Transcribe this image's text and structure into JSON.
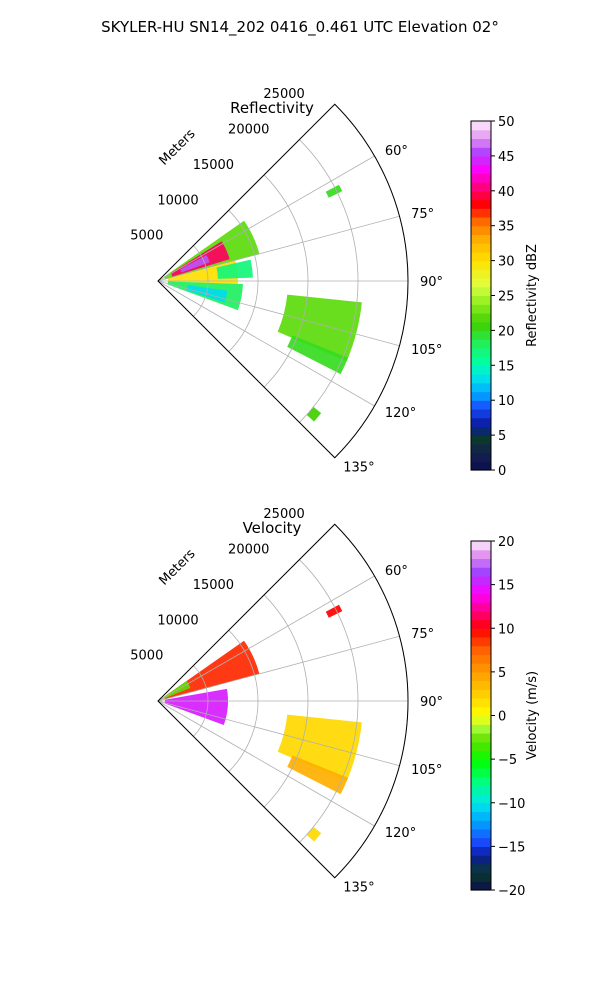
{
  "figure": {
    "title": "SKYLER-HU  SN14_202  0416_0.461 UTC Elevation 02°"
  },
  "chart_data": [
    {
      "type": "polar-sector",
      "title": "Reflectivity",
      "radial_label": "Meters",
      "radial_ticks": [
        5000,
        10000,
        15000,
        20000,
        25000
      ],
      "radial_tick_labels": [
        "5000",
        "10000",
        "15000",
        "20000",
        "25000"
      ],
      "r_max": 25000,
      "theta_range_deg": [
        45,
        135
      ],
      "theta_ticks": [
        60,
        75,
        90,
        105,
        120,
        135
      ],
      "theta_tick_labels": [
        "60°",
        "75°",
        "90°",
        "105°",
        "120°",
        "135°"
      ],
      "grid": true,
      "colorbar": {
        "label": "Reflectivity dBZ",
        "range": [
          0,
          50
        ],
        "ticks": [
          0,
          5,
          10,
          15,
          20,
          25,
          30,
          35,
          40,
          45,
          50
        ],
        "tick_labels": [
          "0",
          "5",
          "10",
          "15",
          "20",
          "25",
          "30",
          "35",
          "40",
          "45",
          "50"
        ]
      },
      "echoes": [
        {
          "az": [
            55,
            75
          ],
          "r": [
            700,
            10500
          ],
          "value": 22
        },
        {
          "az": [
            58,
            73
          ],
          "r": [
            1500,
            7500
          ],
          "value": 40
        },
        {
          "az": [
            62,
            70
          ],
          "r": [
            2500,
            5500
          ],
          "value": 46
        },
        {
          "az": [
            75,
            92
          ],
          "r": [
            1000,
            8000
          ],
          "value": 30
        },
        {
          "az": [
            77,
            88
          ],
          "r": [
            6000,
            9500
          ],
          "value": 17
        },
        {
          "az": [
            92,
            110
          ],
          "r": [
            1000,
            8500
          ],
          "value": 18
        },
        {
          "az": [
            98,
            108
          ],
          "r": [
            3000,
            7000
          ],
          "value": 13
        },
        {
          "az": [
            96,
            113
          ],
          "r": [
            13000,
            20500
          ],
          "value": 22
        },
        {
          "az": [
            112,
            117
          ],
          "r": [
            14500,
            20500
          ],
          "value": 20
        },
        {
          "az": [
            62,
            64
          ],
          "r": [
            19000,
            20500
          ],
          "value": 20
        },
        {
          "az": [
            129,
            132
          ],
          "r": [
            20000,
            21000
          ],
          "value": 21
        }
      ]
    },
    {
      "type": "polar-sector",
      "title": "Velocity",
      "radial_label": "Meters",
      "radial_ticks": [
        5000,
        10000,
        15000,
        20000,
        25000
      ],
      "radial_tick_labels": [
        "5000",
        "10000",
        "15000",
        "20000",
        "25000"
      ],
      "r_max": 25000,
      "theta_range_deg": [
        45,
        135
      ],
      "theta_ticks": [
        60,
        75,
        90,
        105,
        120,
        135
      ],
      "theta_tick_labels": [
        "60°",
        "75°",
        "90°",
        "105°",
        "120°",
        "135°"
      ],
      "grid": true,
      "colorbar": {
        "label": "Velocity (m/s)",
        "range": [
          -20,
          20
        ],
        "ticks": [
          -20,
          -15,
          -10,
          -5,
          0,
          5,
          10,
          15,
          20
        ],
        "tick_labels": [
          "−20",
          "−15",
          "−10",
          "−5",
          "0",
          "5",
          "10",
          "15",
          "20"
        ]
      },
      "echoes": [
        {
          "az": [
            55,
            75
          ],
          "r": [
            700,
            10500
          ],
          "value": 9
        },
        {
          "az": [
            80,
            110
          ],
          "r": [
            700,
            7000
          ],
          "value": 15
        },
        {
          "az": [
            55,
            68
          ],
          "r": [
            300,
            3500
          ],
          "value": -3
        },
        {
          "az": [
            96,
            113
          ],
          "r": [
            13000,
            20500
          ],
          "value": 2
        },
        {
          "az": [
            112,
            117
          ],
          "r": [
            14500,
            20500
          ],
          "value": 4
        },
        {
          "az": [
            62,
            64
          ],
          "r": [
            19000,
            20500
          ],
          "value": 10
        },
        {
          "az": [
            129,
            132
          ],
          "r": [
            20000,
            21000
          ],
          "value": 2
        }
      ]
    }
  ]
}
